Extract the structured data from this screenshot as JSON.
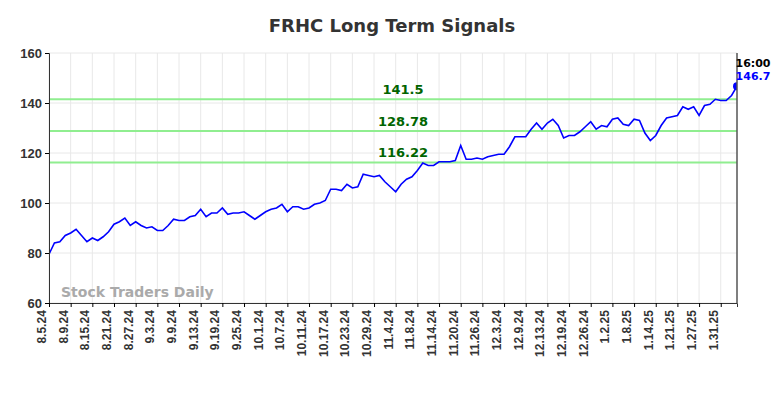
{
  "chart_data": {
    "type": "line",
    "title": "FRHC Long Term Signals",
    "categories": [
      "8.5.24",
      null,
      null,
      null,
      "8.9.24",
      null,
      null,
      null,
      "8.15.24",
      null,
      null,
      null,
      "8.21.24",
      null,
      null,
      null,
      "8.27.24",
      null,
      null,
      null,
      "9.3.24",
      null,
      null,
      null,
      "9.9.24",
      null,
      null,
      null,
      "9.13.24",
      null,
      null,
      null,
      "9.19.24",
      null,
      null,
      null,
      "9.25.24",
      null,
      null,
      null,
      "10.1.24",
      null,
      null,
      null,
      "10.7.24",
      null,
      null,
      null,
      "10.11.24",
      null,
      null,
      null,
      "10.17.24",
      null,
      null,
      null,
      "10.23.24",
      null,
      null,
      null,
      "10.29.24",
      null,
      null,
      null,
      "11.4.24",
      null,
      null,
      null,
      "11.8.24",
      null,
      null,
      null,
      "11.14.24",
      null,
      null,
      null,
      "11.20.24",
      null,
      null,
      null,
      "11.26.24",
      null,
      null,
      null,
      "12.3.24",
      null,
      null,
      null,
      "12.9.24",
      null,
      null,
      null,
      "12.13.24",
      null,
      null,
      null,
      "12.19.24",
      null,
      null,
      null,
      "12.26.24",
      null,
      null,
      null,
      "1.2.25",
      null,
      null,
      null,
      "1.8.25",
      null,
      null,
      null,
      "1.14.25",
      null,
      null,
      null,
      "1.21.25",
      null,
      null,
      null,
      "1.27.25",
      null,
      null,
      null,
      "1.31.25",
      null,
      null,
      null
    ],
    "values": [
      79.5,
      84,
      84.5,
      87,
      88,
      89.5,
      87,
      84.5,
      86,
      85,
      86.5,
      88.5,
      91.5,
      92.5,
      94,
      91,
      92.5,
      91,
      90,
      90.5,
      89,
      89,
      91,
      93.5,
      93,
      93,
      94.5,
      95,
      97.5,
      94.5,
      96,
      96,
      98,
      95.5,
      96,
      96,
      96.5,
      95,
      93.5,
      95,
      96.5,
      97.5,
      98,
      99.5,
      96.5,
      98.5,
      98.5,
      97.5,
      98,
      99.5,
      100,
      101,
      105.5,
      105.5,
      105,
      107.5,
      106,
      106.5,
      111.5,
      111,
      110.5,
      111,
      108.5,
      106.5,
      104.5,
      107.5,
      109.5,
      110.5,
      113,
      116,
      115,
      115,
      116.5,
      116.5,
      116.5,
      117,
      123,
      117.5,
      117.5,
      118,
      117.5,
      118.5,
      119,
      119.5,
      119.5,
      122.5,
      126.5,
      126.5,
      126.5,
      129.5,
      132,
      129.5,
      132,
      133.5,
      131,
      126,
      127,
      127,
      128.5,
      130.5,
      132.5,
      129.5,
      131,
      130.5,
      133.5,
      134,
      131.5,
      131,
      133.5,
      133,
      128,
      125,
      127,
      131,
      134,
      134.5,
      135,
      138.5,
      137.5,
      138.5,
      135,
      139,
      139.5,
      141.5,
      141,
      141,
      143,
      146.7
    ],
    "color": "#0000ff",
    "levels": [
      141.5,
      128.78,
      116.22
    ],
    "annotation": "16:00",
    "watermark": "Stock Traders Daily",
    "ylim": [
      60,
      160
    ],
    "yticks": [
      60,
      80,
      100,
      120,
      140,
      160
    ],
    "grid": true
  }
}
